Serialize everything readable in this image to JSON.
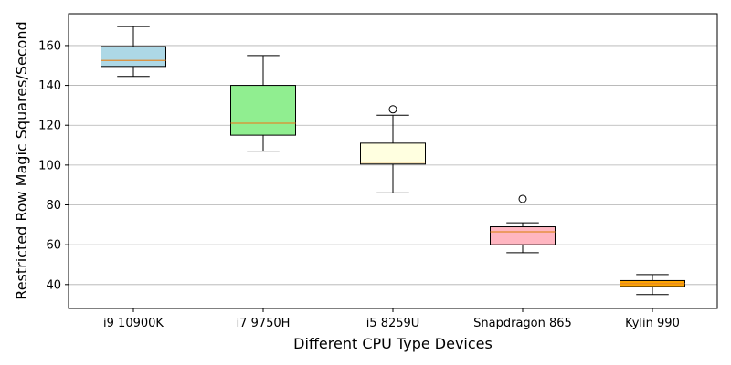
{
  "chart_data": {
    "type": "box",
    "xlabel": "Different CPU Type Devices",
    "ylabel": "Restricted Row Magic Squares/Second",
    "ylim": [
      28,
      176
    ],
    "yticks": [
      40,
      60,
      80,
      100,
      120,
      140,
      160
    ],
    "grid": "horizontal",
    "median_color": "#e08a2c",
    "categories": [
      "i9 10900K",
      "i7 9750H",
      "i5 8259U",
      "Snapdragon 865",
      "Kylin 990"
    ],
    "boxes": [
      {
        "whisker_low": 144.5,
        "q1": 149.5,
        "median": 152.5,
        "q3": 159.5,
        "whisker_high": 169.5,
        "outliers": [],
        "color": "#add8e6"
      },
      {
        "whisker_low": 107,
        "q1": 115,
        "median": 121,
        "q3": 140,
        "whisker_high": 155,
        "outliers": [],
        "color": "#90ee90"
      },
      {
        "whisker_low": 86,
        "q1": 100.5,
        "median": 101.5,
        "q3": 111,
        "whisker_high": 125,
        "outliers": [
          128
        ],
        "color": "#ffffe0"
      },
      {
        "whisker_low": 56,
        "q1": 60,
        "median": 66.5,
        "q3": 69,
        "whisker_high": 71,
        "outliers": [
          83
        ],
        "color": "#ffb6c1"
      },
      {
        "whisker_low": 35,
        "q1": 39,
        "median": 40.5,
        "q3": 42,
        "whisker_high": 45,
        "outliers": [],
        "color": "#ffa500"
      }
    ]
  }
}
